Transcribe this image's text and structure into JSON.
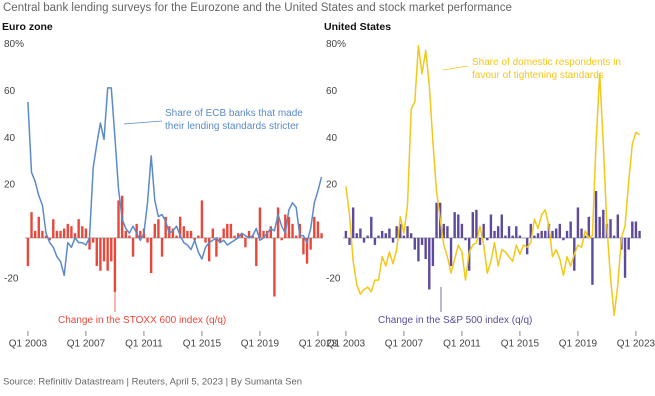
{
  "title": "Central bank lending surveys for the Eurozone and the United States and stock market performance",
  "source": "Source: Refinitiv Datastream | Reuters, April 5, 2023 | By Sumanta Sen",
  "chart_data": [
    {
      "type": "combo",
      "title": "Euro zone",
      "x": [
        2003,
        2003.25,
        2003.5,
        2003.75,
        2004,
        2004.25,
        2004.5,
        2004.75,
        2005,
        2005.25,
        2005.5,
        2005.75,
        2006,
        2006.25,
        2006.5,
        2006.75,
        2007,
        2007.25,
        2007.5,
        2007.75,
        2008,
        2008.25,
        2008.5,
        2008.75,
        2009,
        2009.25,
        2009.5,
        2009.75,
        2010,
        2010.25,
        2010.5,
        2010.75,
        2011,
        2011.25,
        2011.5,
        2011.75,
        2012,
        2012.25,
        2012.5,
        2012.75,
        2013,
        2013.25,
        2013.5,
        2013.75,
        2014,
        2014.25,
        2014.5,
        2014.75,
        2015,
        2015.25,
        2015.5,
        2015.75,
        2016,
        2016.25,
        2016.5,
        2016.75,
        2017,
        2017.25,
        2017.5,
        2017.75,
        2018,
        2018.25,
        2018.5,
        2018.75,
        2019,
        2019.25,
        2019.5,
        2019.75,
        2020,
        2020.25,
        2020.5,
        2020.75,
        2021,
        2021.25,
        2021.5,
        2021.75,
        2022,
        2022.25,
        2022.5,
        2022.75,
        2023,
        2023.25
      ],
      "series": [
        {
          "name": "Change in the STOXX 600 index (q/q)",
          "type": "bar",
          "color": "#e8483b",
          "values": [
            -12,
            11,
            3,
            9,
            3,
            1,
            -1,
            8,
            3,
            3,
            4,
            6,
            5,
            2,
            8,
            5,
            4,
            -5,
            -2,
            -12,
            -14,
            -10,
            -14,
            -10,
            -23,
            16,
            18,
            3,
            1,
            -8,
            6,
            3,
            4,
            -2,
            -15,
            6,
            8,
            -8,
            9,
            5,
            4,
            1,
            9,
            5,
            3,
            3,
            -1,
            1,
            16,
            -2,
            -10,
            4,
            -8,
            -2,
            4,
            6,
            6,
            1,
            2,
            2,
            -4,
            3,
            1,
            -12,
            13,
            3,
            3,
            5,
            -25,
            13,
            -1,
            10,
            9,
            6,
            1,
            6,
            -7,
            -11,
            -5,
            9,
            7,
            2
          ]
        },
        {
          "name": "Share of ECB banks that made their lending standards stricter",
          "type": "line",
          "color": "#5b8ac9",
          "values": [
            58,
            28,
            24,
            18,
            14,
            2,
            -2,
            -4,
            -8,
            -10,
            -16,
            -2,
            -4,
            0,
            -2,
            -2,
            -3,
            0,
            30,
            40,
            49,
            42,
            64,
            64,
            43,
            21,
            8,
            4,
            2,
            5,
            2,
            -1,
            2,
            15,
            35,
            16,
            9,
            10,
            7,
            2,
            3,
            5,
            1,
            -2,
            -3,
            -5,
            -1,
            -6,
            -9,
            -4,
            -2,
            -1,
            0,
            -2,
            -1,
            -3,
            -2,
            -1,
            0,
            2,
            1,
            0,
            1,
            4,
            -1,
            0,
            2,
            4,
            3,
            10,
            5,
            2,
            12,
            15,
            13,
            1,
            1,
            -2,
            4,
            15,
            20,
            26
          ]
        }
      ],
      "xlim": [
        2002.8,
        2023.35
      ],
      "xticks": [
        {
          "value": 2003,
          "label": "Q1 2003"
        },
        {
          "value": 2007,
          "label": "Q1 2007"
        },
        {
          "value": 2011,
          "label": "Q1 2011"
        },
        {
          "value": 2015,
          "label": "Q1 2015"
        },
        {
          "value": 2019,
          "label": "Q1 2019"
        },
        {
          "value": 2023,
          "label": "Q1 2023"
        }
      ],
      "ylim": [
        -38,
        84
      ],
      "yticks": [
        {
          "value": 80,
          "label": "80%"
        },
        60,
        40,
        20,
        -20
      ]
    },
    {
      "type": "combo",
      "title": "United States",
      "x": [
        2003,
        2003.25,
        2003.5,
        2003.75,
        2004,
        2004.25,
        2004.5,
        2004.75,
        2005,
        2005.25,
        2005.5,
        2005.75,
        2006,
        2006.25,
        2006.5,
        2006.75,
        2007,
        2007.25,
        2007.5,
        2007.75,
        2008,
        2008.25,
        2008.5,
        2008.75,
        2009,
        2009.25,
        2009.5,
        2009.75,
        2010,
        2010.25,
        2010.5,
        2010.75,
        2011,
        2011.25,
        2011.5,
        2011.75,
        2012,
        2012.25,
        2012.5,
        2012.75,
        2013,
        2013.25,
        2013.5,
        2013.75,
        2014,
        2014.25,
        2014.5,
        2014.75,
        2015,
        2015.25,
        2015.5,
        2015.75,
        2016,
        2016.25,
        2016.5,
        2016.75,
        2017,
        2017.25,
        2017.5,
        2017.75,
        2018,
        2018.25,
        2018.5,
        2018.75,
        2019,
        2019.25,
        2019.5,
        2019.75,
        2020,
        2020.25,
        2020.5,
        2020.75,
        2021,
        2021.25,
        2021.5,
        2021.75,
        2022,
        2022.25,
        2022.5,
        2022.75,
        2023,
        2023.25
      ],
      "series": [
        {
          "name": "Change in the S&P 500 index (q/q)",
          "type": "bar",
          "color": "#5e4a9c",
          "values": [
            3,
            -3,
            13,
            2,
            4,
            -2,
            1,
            9,
            -3,
            1,
            3,
            2,
            4,
            -2,
            5,
            6,
            1,
            5,
            2,
            -5,
            -10,
            -3,
            -9,
            -22,
            -12,
            15,
            15,
            6,
            5,
            -12,
            11,
            10,
            6,
            -1,
            -14,
            11,
            12,
            -3,
            6,
            -1,
            10,
            3,
            5,
            10,
            1,
            5,
            1,
            5,
            1,
            0,
            -7,
            6,
            1,
            2,
            3,
            3,
            6,
            3,
            4,
            6,
            -1,
            3,
            7,
            -14,
            13,
            4,
            1,
            9,
            -20,
            20,
            9,
            12,
            6,
            8,
            1,
            10,
            -5,
            -17,
            -5,
            7,
            7,
            3
          ]
        },
        {
          "name": "Share of domestic respondents in favour of tightening standards",
          "type": "line",
          "color": "#f2c81a",
          "values": [
            22,
            10,
            -10,
            -20,
            -24,
            -22,
            -21,
            -23,
            -18,
            -18,
            -8,
            -12,
            -6,
            -11,
            -5,
            9,
            2,
            14,
            55,
            58,
            82,
            70,
            80,
            65,
            41,
            20,
            8,
            -3,
            -8,
            -15,
            -9,
            -3,
            -6,
            -18,
            -6,
            -3,
            -2,
            5,
            -3,
            -15,
            -10,
            -2,
            -12,
            -5,
            -6,
            -8,
            -10,
            -3,
            -7,
            -3,
            -4,
            -2,
            8,
            4,
            10,
            12,
            5,
            -8,
            -5,
            -9,
            -16,
            -8,
            -12,
            -7,
            -3,
            -4,
            3,
            0,
            1,
            40,
            70,
            40,
            5,
            -17,
            -33,
            -20,
            0,
            5,
            24,
            40,
            45,
            44
          ]
        }
      ],
      "xlim": [
        2002.8,
        2023.35
      ],
      "xticks": [
        {
          "value": 2003,
          "label": "Q1 2003"
        },
        {
          "value": 2007,
          "label": "Q1 2007"
        },
        {
          "value": 2011,
          "label": "Q1 2011"
        },
        {
          "value": 2015,
          "label": "Q1 2015"
        },
        {
          "value": 2019,
          "label": "Q1 2019"
        },
        {
          "value": 2023,
          "label": "Q1 2023"
        }
      ],
      "ylim": [
        -38,
        84
      ],
      "yticks": [
        {
          "value": 80,
          "label": "80%"
        },
        60,
        40,
        20,
        -20
      ]
    }
  ]
}
